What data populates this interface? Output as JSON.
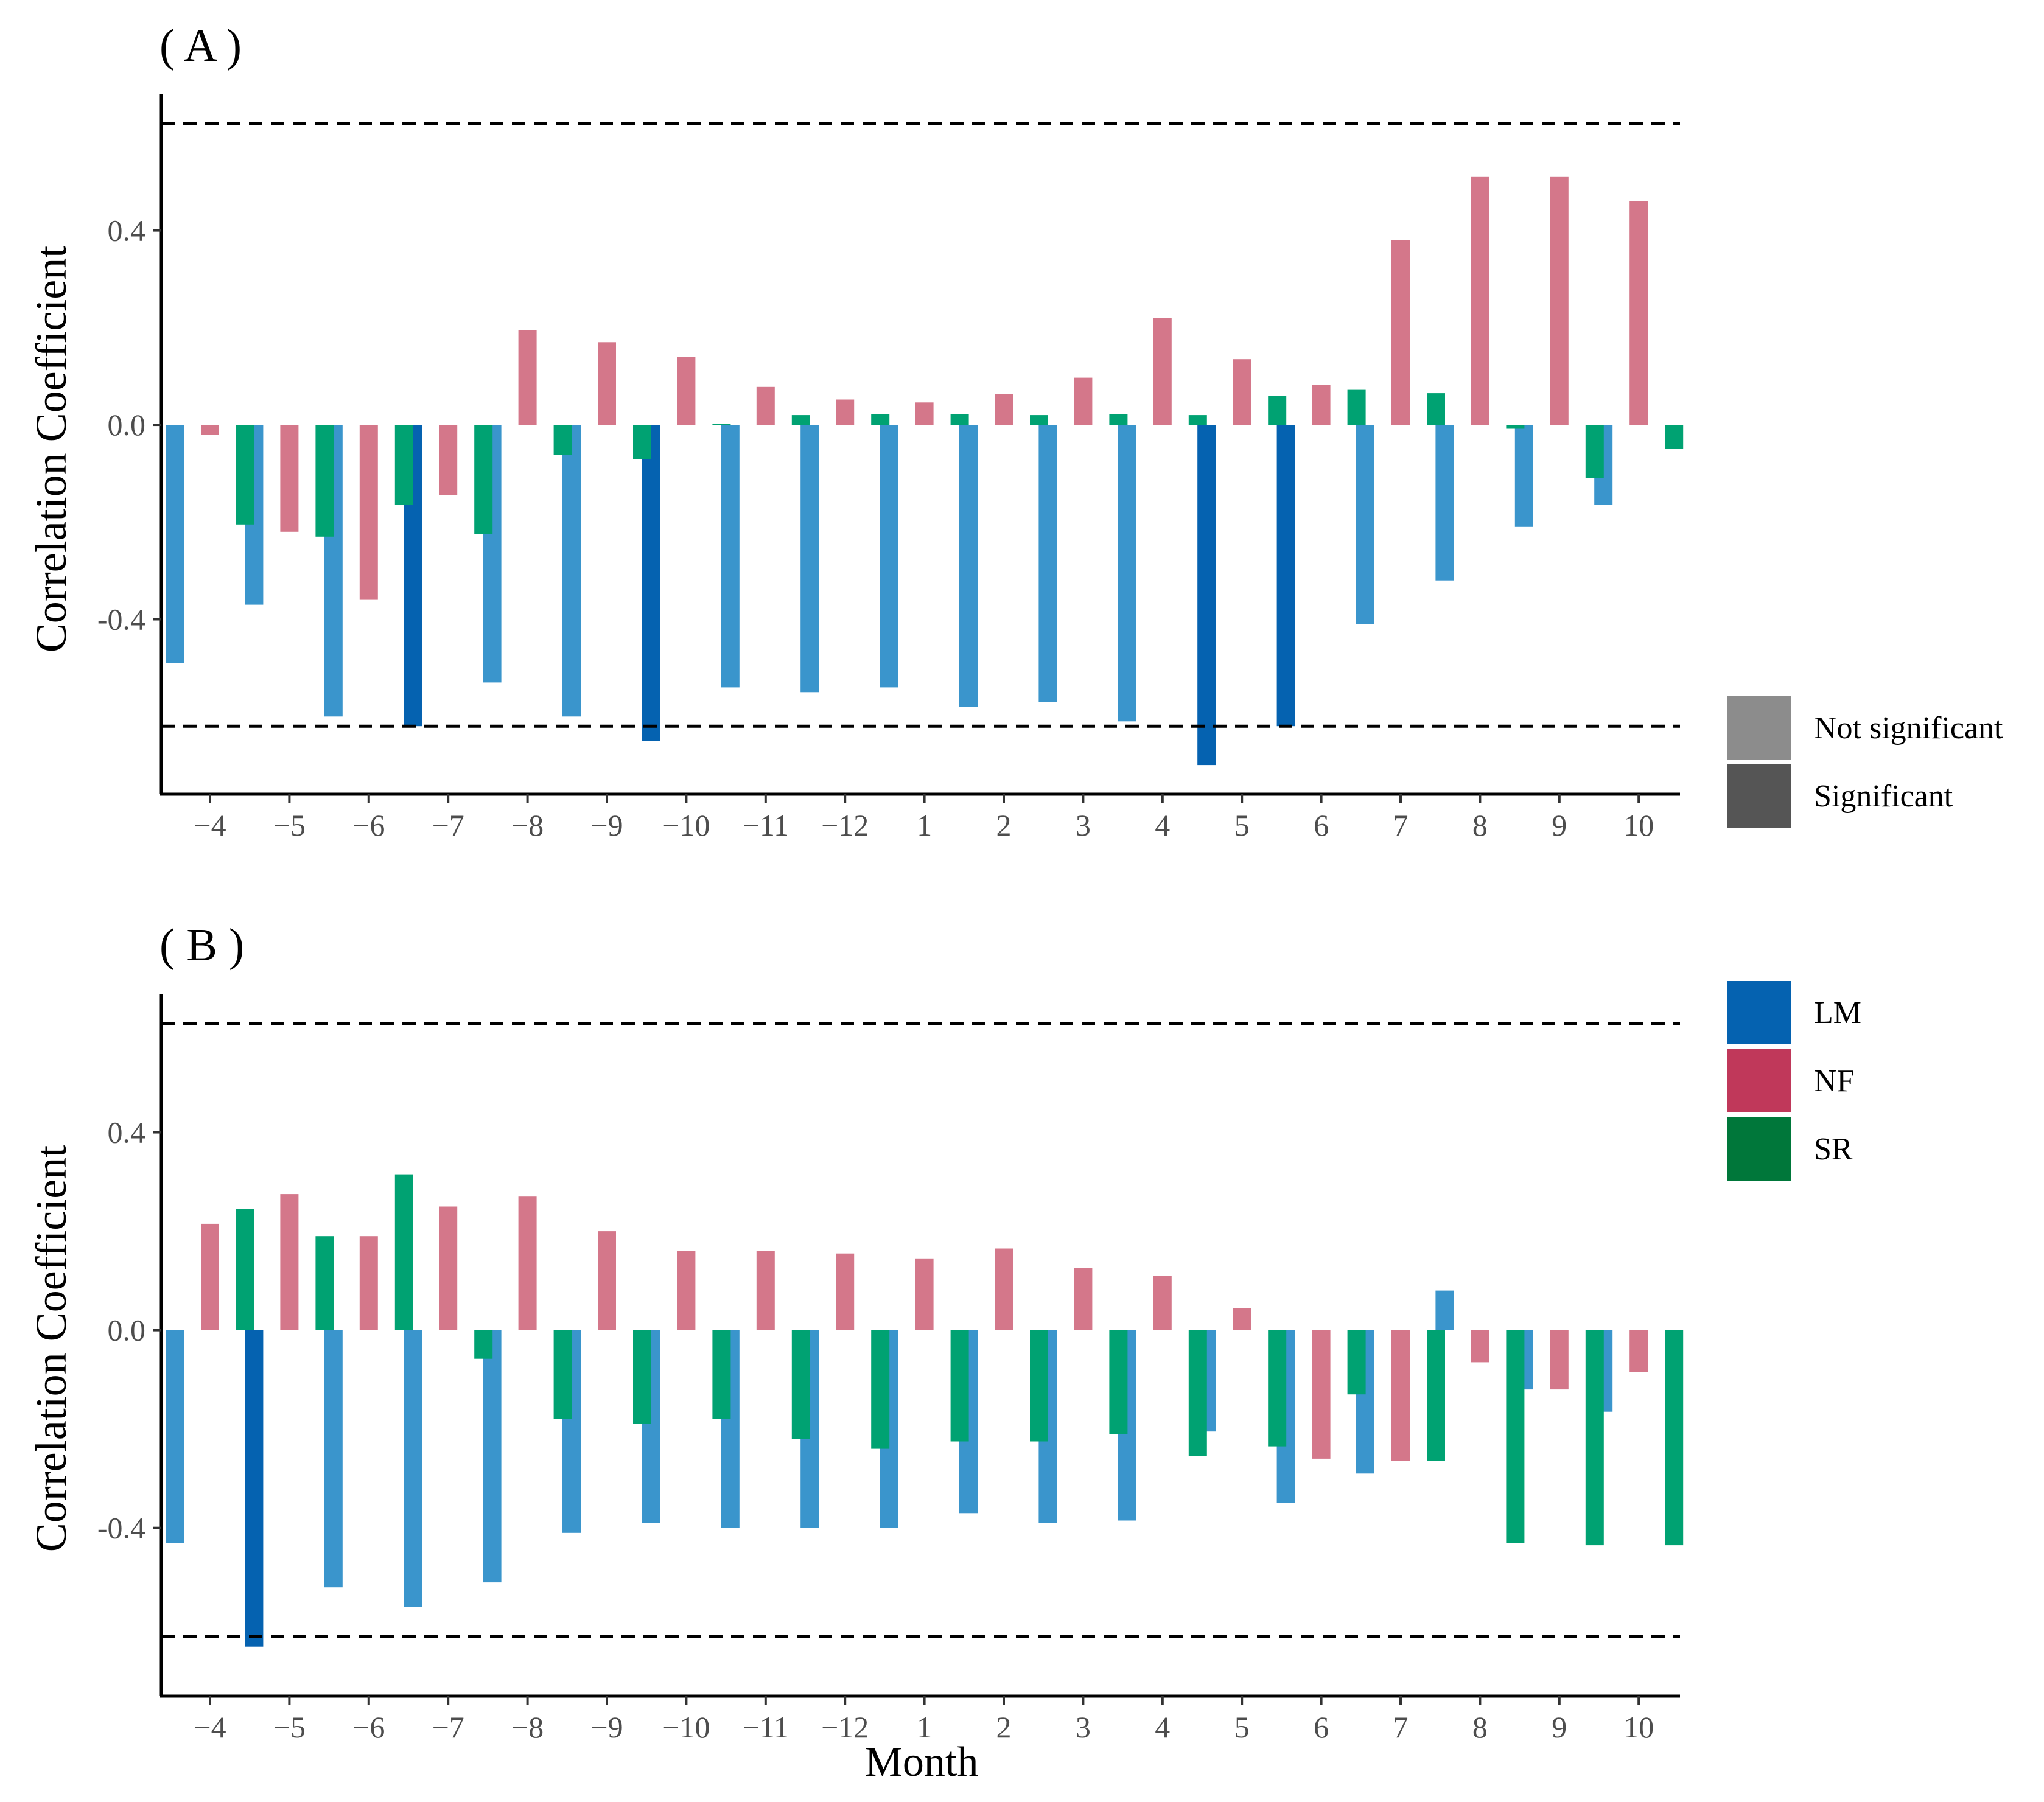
{
  "chart_data": [
    {
      "panel_label": "( A )",
      "type": "bar",
      "ylabel": "Correlation Coefficient",
      "xlabel": "",
      "ylim": [
        -0.76,
        0.68
      ],
      "yticks": [
        "0.4",
        "0.0",
        "-0.4"
      ],
      "ytick_values": [
        0.4,
        0.0,
        -0.4
      ],
      "significance_lines": [
        0.62,
        -0.62
      ],
      "categories": [
        "−4",
        "−5",
        "−6",
        "−7",
        "−8",
        "−9",
        "−10",
        "−11",
        "−12",
        "1",
        "2",
        "3",
        "4",
        "5",
        "6",
        "7",
        "8",
        "9",
        "10"
      ],
      "series": [
        {
          "name": "LM",
          "values": [
            -0.49,
            -0.37,
            -0.6,
            -0.62,
            -0.53,
            -0.6,
            -0.65,
            -0.54,
            -0.55,
            -0.54,
            -0.58,
            -0.57,
            -0.61,
            -0.7,
            -0.62,
            -0.41,
            -0.32,
            -0.21,
            -0.165
          ],
          "significant": [
            false,
            false,
            false,
            true,
            false,
            false,
            true,
            false,
            false,
            false,
            false,
            false,
            false,
            true,
            true,
            false,
            false,
            false,
            false
          ]
        },
        {
          "name": "NF",
          "values": [
            -0.02,
            -0.22,
            -0.36,
            -0.145,
            0.195,
            0.17,
            0.14,
            0.078,
            0.052,
            0.046,
            0.063,
            0.097,
            0.22,
            0.135,
            0.082,
            0.38,
            0.51,
            0.51,
            0.46
          ],
          "significant": [
            false,
            false,
            false,
            false,
            false,
            false,
            false,
            false,
            false,
            false,
            false,
            false,
            false,
            false,
            false,
            false,
            false,
            false,
            false
          ]
        },
        {
          "name": "SR",
          "values": [
            -0.205,
            -0.23,
            -0.165,
            -0.225,
            -0.062,
            -0.07,
            0.002,
            0.02,
            0.022,
            0.022,
            0.02,
            0.022,
            0.02,
            0.06,
            0.072,
            0.065,
            -0.008,
            -0.11,
            -0.05
          ],
          "significant": [
            false,
            false,
            false,
            false,
            false,
            false,
            false,
            false,
            false,
            false,
            false,
            false,
            false,
            false,
            false,
            false,
            false,
            false,
            false
          ]
        }
      ]
    },
    {
      "panel_label": "( B )",
      "type": "bar",
      "ylabel": "Correlation Coefficient",
      "xlabel": "Month",
      "ylim": [
        -0.74,
        0.68
      ],
      "yticks": [
        "0.4",
        "0.0",
        "-0.4"
      ],
      "ytick_values": [
        0.4,
        0.0,
        -0.4
      ],
      "significance_lines": [
        0.62,
        -0.62
      ],
      "categories": [
        "−4",
        "−5",
        "−6",
        "−7",
        "−8",
        "−9",
        "−10",
        "−11",
        "−12",
        "1",
        "2",
        "3",
        "4",
        "5",
        "6",
        "7",
        "8",
        "9",
        "10"
      ],
      "series": [
        {
          "name": "LM",
          "values": [
            -0.43,
            -0.64,
            -0.52,
            -0.56,
            -0.51,
            -0.41,
            -0.39,
            -0.4,
            -0.4,
            -0.4,
            -0.37,
            -0.39,
            -0.385,
            -0.205,
            -0.35,
            -0.29,
            0.08,
            -0.12,
            -0.165
          ],
          "significant": [
            false,
            true,
            false,
            false,
            false,
            false,
            false,
            false,
            false,
            false,
            false,
            false,
            false,
            false,
            false,
            false,
            false,
            false,
            false
          ]
        },
        {
          "name": "NF",
          "values": [
            0.215,
            0.275,
            0.19,
            0.25,
            0.27,
            0.2,
            0.16,
            0.16,
            0.155,
            0.145,
            0.165,
            0.125,
            0.11,
            0.045,
            -0.26,
            -0.265,
            -0.065,
            -0.12,
            -0.085
          ],
          "significant": [
            false,
            false,
            false,
            false,
            false,
            false,
            false,
            false,
            false,
            false,
            false,
            false,
            false,
            false,
            false,
            false,
            false,
            false,
            false
          ]
        },
        {
          "name": "SR",
          "values": [
            0.245,
            0.19,
            0.315,
            -0.058,
            -0.18,
            -0.19,
            -0.18,
            -0.22,
            -0.24,
            -0.225,
            -0.225,
            -0.21,
            -0.255,
            -0.235,
            -0.13,
            -0.265,
            -0.43,
            -0.435,
            -0.435
          ],
          "significant": [
            false,
            false,
            false,
            false,
            false,
            false,
            false,
            false,
            false,
            false,
            false,
            false,
            false,
            false,
            false,
            false,
            false,
            false,
            false
          ]
        }
      ]
    }
  ],
  "colors": {
    "LM_ns": "#3a95cc",
    "LM_sig": "#0562b0",
    "NF_ns": "#d4778a",
    "NF_sig": "#c0385a",
    "SR_ns": "#00a272",
    "SR_sig": "#00773a",
    "legend_LM": "#0562b0",
    "legend_NF": "#c0385a",
    "legend_SR": "#00773a",
    "legend_not_significant": "#8c8c8c",
    "legend_significant": "#555555"
  },
  "legend": {
    "alpha": [
      {
        "label": "Not significant",
        "color_key": "legend_not_significant"
      },
      {
        "label": "Significant",
        "color_key": "legend_significant"
      }
    ],
    "series": [
      {
        "label": "LM",
        "color_key": "legend_LM"
      },
      {
        "label": "NF",
        "color_key": "legend_NF"
      },
      {
        "label": "SR",
        "color_key": "legend_SR"
      }
    ]
  }
}
